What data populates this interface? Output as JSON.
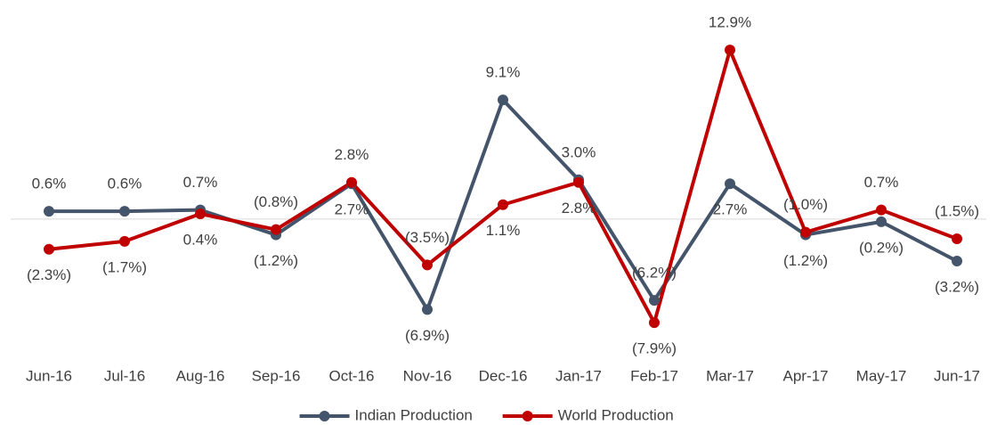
{
  "chart_data": {
    "type": "line",
    "categories": [
      "Jun-16",
      "Jul-16",
      "Aug-16",
      "Sep-16",
      "Oct-16",
      "Nov-16",
      "Dec-16",
      "Jan-17",
      "Feb-17",
      "Mar-17",
      "Apr-17",
      "May-17",
      "Jun-17"
    ],
    "series": [
      {
        "name": "Indian Production",
        "color": "#44546a",
        "values": [
          0.6,
          0.6,
          0.7,
          -1.2,
          2.7,
          -6.9,
          9.1,
          3.0,
          -6.2,
          2.7,
          -1.2,
          -0.2,
          -3.2
        ],
        "value_labels": [
          "0.6%",
          "0.6%",
          "0.7%",
          "(1.2%)",
          "2.7%",
          "(6.9%)",
          "9.1%",
          "3.0%",
          "(6.2%)",
          "2.7%",
          "(1.2%)",
          "(0.2%)",
          "(3.2%)"
        ]
      },
      {
        "name": "World Production",
        "color": "#c00000",
        "values": [
          -2.3,
          -1.7,
          0.4,
          -0.8,
          2.8,
          -3.5,
          1.1,
          2.8,
          -7.9,
          12.9,
          -1.0,
          0.7,
          -1.5
        ],
        "value_labels": [
          "(2.3%)",
          "(1.7%)",
          "0.4%",
          "(0.8%)",
          "2.8%",
          "(3.5%)",
          "1.1%",
          "2.8%",
          "(7.9%)",
          "12.9%",
          "(1.0%)",
          "0.7%",
          "(1.5%)"
        ]
      }
    ],
    "ylim": [
      -10,
      14
    ],
    "legend": "bottom"
  }
}
